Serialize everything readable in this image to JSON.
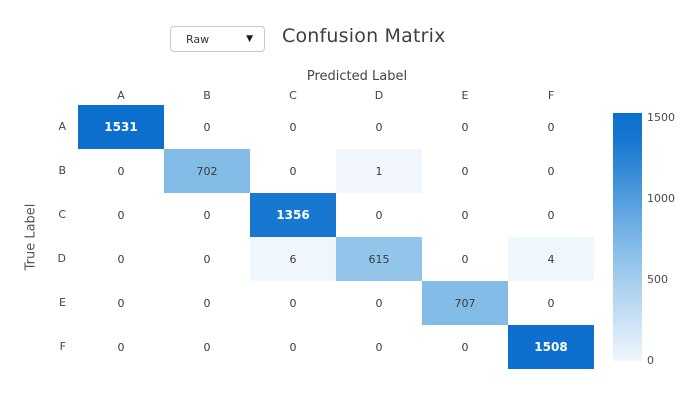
{
  "header": {
    "dropdown_value": "Raw",
    "dropdown_arrow": "▼",
    "title": "Confusion Matrix"
  },
  "chart_data": {
    "type": "heatmap",
    "title": "Confusion Matrix",
    "xlabel": "Predicted Label",
    "ylabel": "True Label",
    "categories": [
      "A",
      "B",
      "C",
      "D",
      "E",
      "F"
    ],
    "matrix": [
      [
        1531,
        0,
        0,
        0,
        0,
        0
      ],
      [
        0,
        702,
        0,
        1,
        0,
        0
      ],
      [
        0,
        0,
        1356,
        0,
        0,
        0
      ],
      [
        0,
        0,
        6,
        615,
        0,
        4
      ],
      [
        0,
        0,
        0,
        0,
        707,
        0
      ],
      [
        0,
        0,
        0,
        0,
        0,
        1508
      ]
    ],
    "zlim": [
      0,
      1531
    ],
    "colorbar": {
      "ticks": [
        1500,
        1000,
        500,
        0
      ],
      "position": "right"
    },
    "colors": {
      "zero_cell": "#ffffff",
      "dark_text": "#ffffff",
      "light_text": "#3a3a3a",
      "scale_stops": [
        [
          0.0,
          "#f0f6fc"
        ],
        [
          0.4,
          "#93c4ea"
        ],
        [
          0.46,
          "#84bce8"
        ],
        [
          0.886,
          "#1777d1"
        ],
        [
          1.0,
          "#0d6fcd"
        ]
      ]
    }
  }
}
